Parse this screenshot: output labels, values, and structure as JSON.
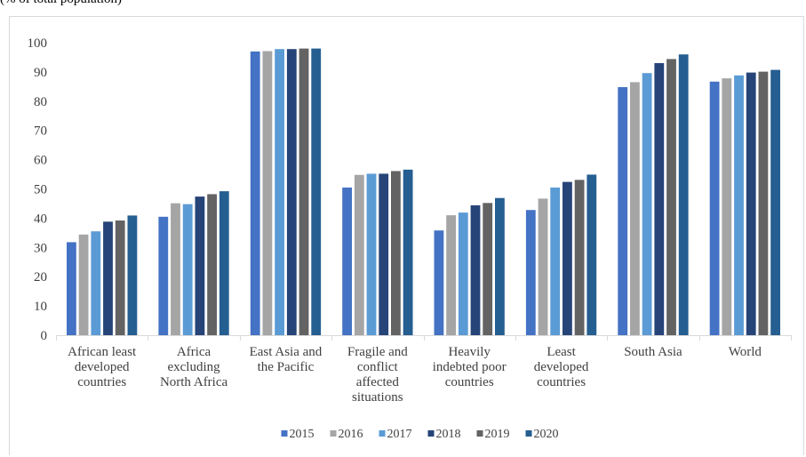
{
  "caption_fragment": "(% of total population)",
  "chart_data": {
    "type": "bar",
    "title": "",
    "xlabel": "",
    "ylabel": "",
    "ylim": [
      0,
      100
    ],
    "yticks": [
      0,
      10,
      20,
      30,
      40,
      50,
      60,
      70,
      80,
      90,
      100
    ],
    "grid": false,
    "legend_position": "bottom",
    "categories": [
      [
        "African least",
        "developed",
        "countries"
      ],
      [
        "Africa",
        "excluding",
        "North Africa"
      ],
      [
        "East Asia and",
        "the Pacific"
      ],
      [
        "Fragile and",
        "conflict",
        "affected",
        "situations"
      ],
      [
        "Heavily",
        "indebted poor",
        "countries"
      ],
      [
        "Least",
        "developed",
        "countries"
      ],
      [
        "South Asia"
      ],
      [
        "World"
      ]
    ],
    "series": [
      {
        "name": "2015",
        "color": "#4472c4",
        "values": [
          31.8,
          40.5,
          97.0,
          50.5,
          35.8,
          42.8,
          84.8,
          86.7
        ]
      },
      {
        "name": "2016",
        "color": "#a5a5a5",
        "values": [
          34.4,
          45.1,
          97.1,
          54.8,
          41.0,
          46.7,
          86.5,
          87.8
        ]
      },
      {
        "name": "2017",
        "color": "#5b9bd5",
        "values": [
          35.5,
          44.8,
          97.8,
          55.2,
          41.9,
          50.5,
          89.6,
          88.8
        ]
      },
      {
        "name": "2018",
        "color": "#264478",
        "values": [
          38.8,
          47.4,
          97.8,
          55.2,
          44.4,
          52.4,
          93.0,
          89.8
        ]
      },
      {
        "name": "2019",
        "color": "#636363",
        "values": [
          39.2,
          48.2,
          98.0,
          56.1,
          45.2,
          53.1,
          94.4,
          90.1
        ]
      },
      {
        "name": "2020",
        "color": "#255e91",
        "values": [
          40.9,
          49.2,
          98.0,
          56.6,
          46.9,
          54.9,
          96.0,
          90.7
        ]
      }
    ]
  }
}
